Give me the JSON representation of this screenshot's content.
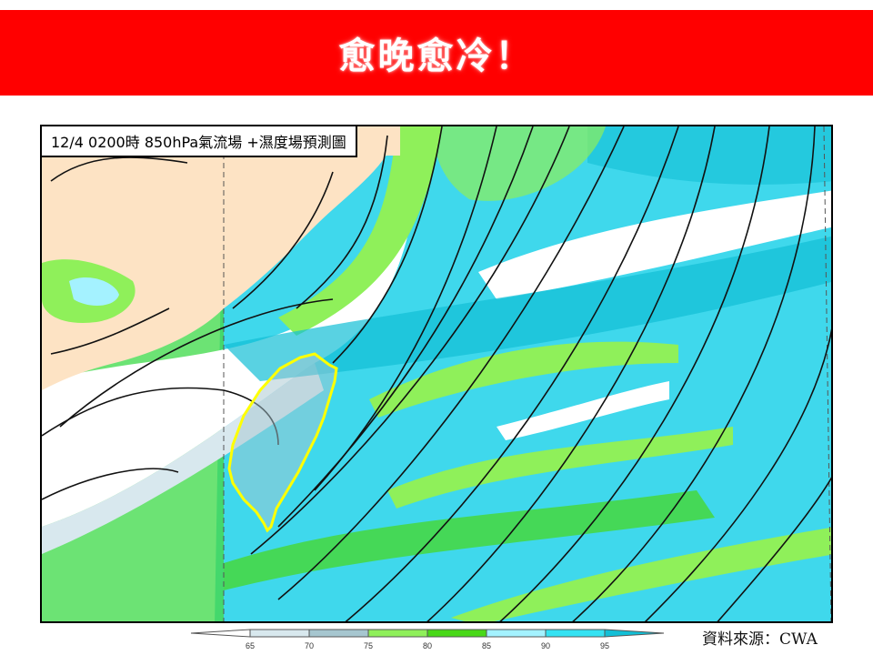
{
  "banner": {
    "title": "愈晚愈冷！",
    "color": "#ff0000"
  },
  "map": {
    "label": "12/4 0200時  850hPa氣流場 +濕度場預測圖",
    "highlight_color": "#ffff00",
    "highlighted_region": "Taiwan"
  },
  "colorbar": {
    "ticks": [
      "65",
      "70",
      "75",
      "80",
      "85",
      "90",
      "95"
    ],
    "colors": [
      "#ffffff",
      "#d8e8ee",
      "#a6c6cf",
      "#8ff05a",
      "#48d818",
      "#a4f2ff",
      "#34e2f2",
      "#12bfd6"
    ]
  },
  "source": "資料來源：CWA"
}
